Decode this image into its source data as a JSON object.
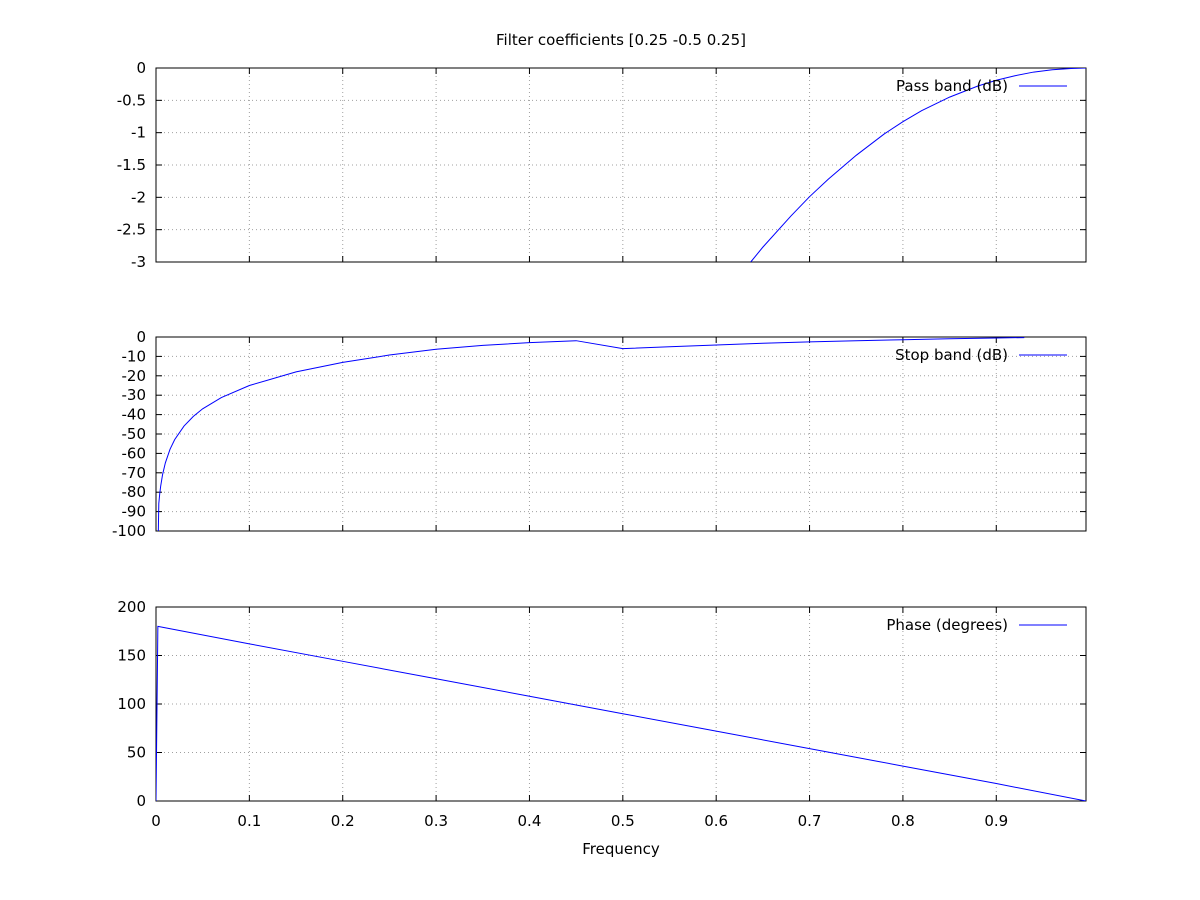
{
  "chart_data": {
    "title": "Filter coefficients [0.25 -0.5 0.25]",
    "xlabel": "Frequency",
    "xlim": [
      0,
      0.9961
    ],
    "xticks": [
      0,
      0.1,
      0.2,
      0.3,
      0.4,
      0.5,
      0.6,
      0.7,
      0.8,
      0.9
    ],
    "xtick_labels": [
      "0",
      "0.1",
      "0.2",
      "0.3",
      "0.4",
      "0.5",
      "0.6",
      "0.7",
      "0.8",
      "0.9"
    ],
    "line_color": "#0000ff",
    "grid": true,
    "legend_placement": "top-right",
    "panels": [
      {
        "type": "line",
        "series_name": "Pass band (dB)",
        "ylim": [
          -3,
          0
        ],
        "yticks": [
          0,
          -0.5,
          -1,
          -1.5,
          -2,
          -2.5,
          -3
        ],
        "ytick_labels": [
          "0",
          "-0.5",
          "-1",
          "-1.5",
          "-2",
          "-2.5",
          "-3"
        ],
        "x": [
          0.637,
          0.65,
          0.68,
          0.7,
          0.72,
          0.75,
          0.78,
          0.8,
          0.82,
          0.85,
          0.88,
          0.9,
          0.92,
          0.94,
          0.96,
          0.98,
          0.9961
        ],
        "y": [
          -3.0,
          -2.77,
          -2.29,
          -1.99,
          -1.72,
          -1.35,
          -1.02,
          -0.83,
          -0.66,
          -0.45,
          -0.28,
          -0.19,
          -0.12,
          -0.063,
          -0.027,
          -0.007,
          0
        ]
      },
      {
        "type": "line",
        "series_name": "Stop band (dB)",
        "ylim": [
          -100,
          0
        ],
        "yticks": [
          0,
          -10,
          -20,
          -30,
          -40,
          -50,
          -60,
          -70,
          -80,
          -90,
          -100
        ],
        "ytick_labels": [
          "0",
          "-10",
          "-20",
          "-30",
          "-40",
          "-50",
          "-60",
          "-70",
          "-80",
          "-90",
          "-100"
        ],
        "x": [
          0.0025,
          0.003,
          0.004,
          0.005,
          0.007,
          0.01,
          0.015,
          0.02,
          0.03,
          0.04,
          0.05,
          0.07,
          0.1,
          0.15,
          0.2,
          0.25,
          0.3,
          0.35,
          0.4,
          0.45,
          0.5,
          0.55,
          0.6,
          0.65,
          0.7,
          0.75,
          0.8,
          0.85,
          0.9,
          0.93
        ],
        "y": [
          -100,
          -85.8,
          -80.8,
          -76.9,
          -71.0,
          -64.9,
          -57.9,
          -52.9,
          -45.9,
          -40.9,
          -37.0,
          -31.2,
          -25.0,
          -18.0,
          -13.1,
          -9.3,
          -6.3,
          -4.3,
          -2.9,
          -1.9,
          -6.0,
          -5.0,
          -4.1,
          -3.2,
          -2.5,
          -1.9,
          -1.4,
          -0.9,
          -0.5,
          -0.3
        ]
      },
      {
        "type": "line",
        "series_name": "Phase (degrees)",
        "ylim": [
          0,
          200
        ],
        "yticks": [
          0,
          50,
          100,
          150,
          200
        ],
        "ytick_labels": [
          "0",
          "50",
          "100",
          "150",
          "200"
        ],
        "x": [
          0,
          0.002,
          0.1,
          0.2,
          0.3,
          0.4,
          0.5,
          0.6,
          0.7,
          0.8,
          0.9,
          0.9961
        ],
        "y": [
          0,
          180,
          162,
          144,
          126,
          108,
          90,
          72,
          54,
          36,
          18,
          0
        ]
      }
    ]
  }
}
